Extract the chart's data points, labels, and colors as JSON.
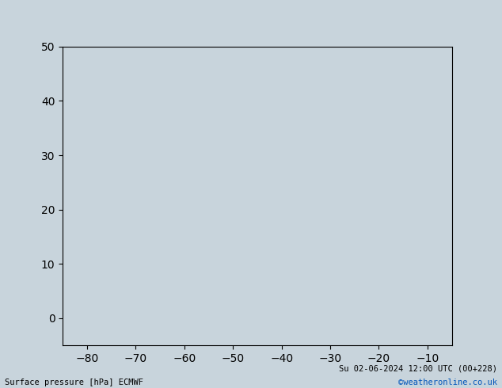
{
  "title_left": "Surface pressure [hPa] ECMWF",
  "title_right": "Su 02-06-2024 12:00 UTC (00+228)",
  "copyright": "©weatheronline.co.uk",
  "ocean_color": "#c8d4dc",
  "land_color": "#c8e8b0",
  "land_border_color": "#808080",
  "grid_color": "#a0a0a0",
  "red": "#ff0000",
  "black": "#000000",
  "blue": "#0000cc",
  "text_black": "#000000",
  "text_blue": "#0055bb",
  "lon_min": -85,
  "lon_max": -5,
  "lat_min": -5,
  "lat_max": 50,
  "figwidth": 6.34,
  "figheight": 4.9,
  "dpi": 100
}
